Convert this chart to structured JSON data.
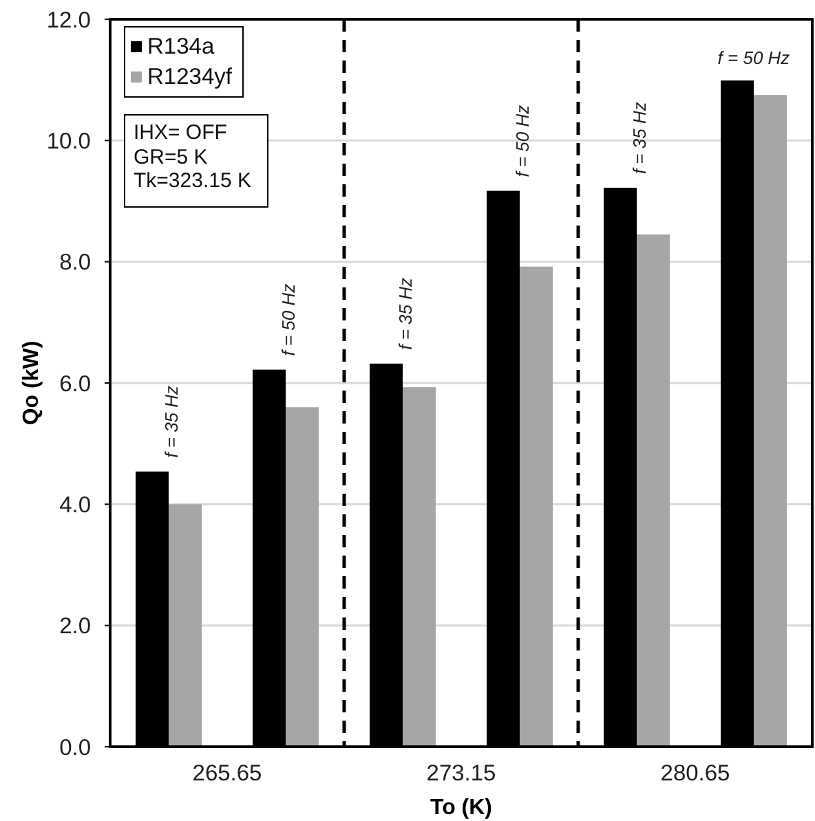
{
  "chart_data": {
    "type": "bar",
    "xlabel": "To (K)",
    "ylabel": "Qo (kW)",
    "categories": [
      "265.65",
      "273.15",
      "280.65"
    ],
    "series": [
      {
        "name": "R134a",
        "color": "#000000",
        "values": [
          4.54,
          6.32,
          9.22
        ]
      },
      {
        "name": "R1234yf",
        "color": "#a6a6a6",
        "values": [
          4.0,
          5.93,
          8.45
        ]
      },
      {
        "color": "#000000",
        "values": [
          6.22,
          9.17,
          10.99
        ]
      },
      {
        "color": "#a6a6a6",
        "values": [
          5.6,
          7.92,
          10.75
        ]
      }
    ],
    "ylim": [
      0,
      12
    ],
    "yticks": [
      {
        "value": 0,
        "label": "0.0"
      },
      {
        "value": 2,
        "label": "2.0"
      },
      {
        "value": 4,
        "label": "4.0"
      },
      {
        "value": 6,
        "label": "6.0"
      },
      {
        "value": 8,
        "label": "8.0"
      },
      {
        "value": 10,
        "label": "10.0"
      },
      {
        "value": 12,
        "label": "12.0"
      }
    ],
    "grid": true,
    "legend": "top left",
    "annotations": [
      "IHX= OFF",
      "GR=5 K",
      "Tk=323.15 K",
      "f = 35 Hz",
      "f = 50 Hz",
      "f = 35 Hz",
      "f = 50 Hz",
      "f = 35 Hz",
      "f = 50 Hz"
    ]
  }
}
